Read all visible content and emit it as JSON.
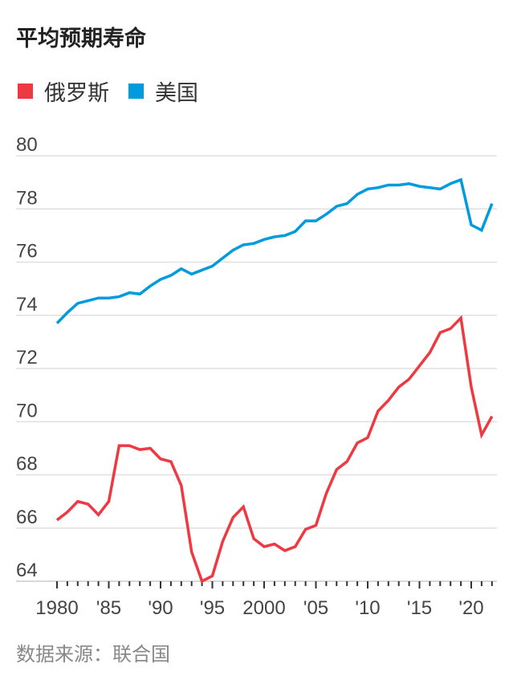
{
  "chart_data": {
    "type": "line",
    "title": "平均预期寿命",
    "source": "数据来源：联合国",
    "legend_position": "top-left",
    "grid": true,
    "ylim": [
      64,
      80
    ],
    "yticks": [
      80,
      78,
      76,
      74,
      72,
      70,
      68,
      66,
      64
    ],
    "xlim": [
      1980,
      2022
    ],
    "xticks": [
      1980,
      1985,
      1990,
      1995,
      2000,
      2005,
      2010,
      2015,
      2020
    ],
    "xtick_labels": [
      "1980",
      "'85",
      "'90",
      "'95",
      "2000",
      "'05",
      "'10",
      "'15",
      "'20"
    ],
    "x": [
      1980,
      1981,
      1982,
      1983,
      1984,
      1985,
      1986,
      1987,
      1988,
      1989,
      1990,
      1991,
      1992,
      1993,
      1994,
      1995,
      1996,
      1997,
      1998,
      1999,
      2000,
      2001,
      2002,
      2003,
      2004,
      2005,
      2006,
      2007,
      2008,
      2009,
      2010,
      2011,
      2012,
      2013,
      2014,
      2015,
      2016,
      2017,
      2018,
      2019,
      2020,
      2021,
      2022
    ],
    "series": [
      {
        "name": "俄罗斯",
        "color": "#ee3942",
        "values": [
          66.3,
          66.6,
          67.0,
          66.9,
          66.5,
          67.0,
          69.1,
          69.1,
          68.95,
          69.0,
          68.6,
          68.5,
          67.6,
          65.1,
          64.0,
          64.2,
          65.5,
          66.4,
          66.8,
          65.6,
          65.3,
          65.4,
          65.15,
          65.3,
          65.95,
          66.1,
          67.3,
          68.2,
          68.5,
          69.2,
          69.4,
          70.4,
          70.8,
          71.3,
          71.6,
          72.1,
          72.6,
          73.35,
          73.5,
          73.9,
          71.3,
          69.5,
          70.2
        ]
      },
      {
        "name": "美国",
        "color": "#009bde",
        "values": [
          73.7,
          74.1,
          74.45,
          74.55,
          74.65,
          74.65,
          74.7,
          74.85,
          74.8,
          75.1,
          75.35,
          75.5,
          75.75,
          75.55,
          75.7,
          75.85,
          76.15,
          76.45,
          76.65,
          76.7,
          76.85,
          76.95,
          77.0,
          77.15,
          77.55,
          77.55,
          77.8,
          78.1,
          78.2,
          78.55,
          78.75,
          78.8,
          78.9,
          78.9,
          78.95,
          78.85,
          78.8,
          78.75,
          78.95,
          79.1,
          77.4,
          77.2,
          78.2
        ]
      }
    ]
  }
}
